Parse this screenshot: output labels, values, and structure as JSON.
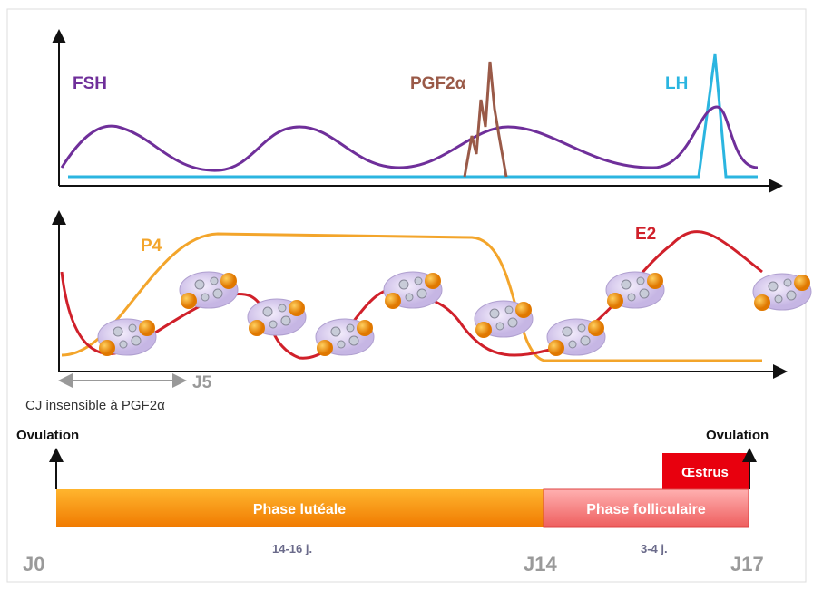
{
  "hormones_panel": {
    "labels": [
      "FSH",
      "PGF2α",
      "LH"
    ]
  },
  "ovarian_panel": {
    "labels": [
      "P4",
      "E2"
    ],
    "marker": "J5",
    "note": "CJ insensible à PGF2α"
  },
  "timeline": {
    "ovulation_start": "Ovulation",
    "ovulation_end": "Ovulation",
    "estrus": "Œstrus",
    "phases": [
      "Phase lutéale",
      "Phase folliculaire"
    ],
    "days": [
      "J0",
      "J14",
      "J17"
    ],
    "durations": [
      "14-16 j.",
      "3-4 j."
    ]
  }
}
